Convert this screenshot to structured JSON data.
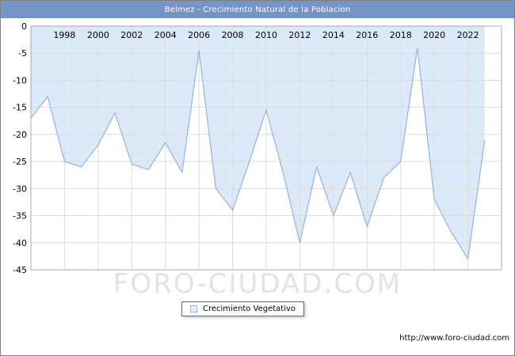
{
  "title": "Belmez - Crecimiento Natural de la Poblacion",
  "watermark": "FORO-CIUDAD.COM",
  "footer_url": "http://www.foro-ciudad.com",
  "legend": {
    "label": "Crecimiento Vegetativo"
  },
  "colors": {
    "titlebar": "#7494ca",
    "area_fill": "#dce9f8",
    "line": "#94b3dd",
    "grid": "#dcdcdc",
    "plot_border": "#a8a8a8",
    "watermark": "#e3e3e3"
  },
  "chart_data": {
    "type": "area",
    "title": "Belmez - Crecimiento Natural de la Poblacion",
    "xlabel": "",
    "ylabel": "",
    "xlim": [
      1996,
      2024
    ],
    "ylim": [
      -45,
      0
    ],
    "baseline": 0,
    "grid": true,
    "legend_position": "bottom",
    "x_ticks": [
      1998,
      2000,
      2002,
      2004,
      2006,
      2008,
      2010,
      2012,
      2014,
      2016,
      2018,
      2020,
      2022
    ],
    "y_ticks": [
      0,
      -5,
      -10,
      -15,
      -20,
      -25,
      -30,
      -35,
      -40,
      -45
    ],
    "series": [
      {
        "name": "Crecimiento Vegetativo",
        "x": [
          1996,
          1997,
          1998,
          1999,
          2000,
          2001,
          2002,
          2003,
          2004,
          2005,
          2006,
          2007,
          2008,
          2009,
          2010,
          2011,
          2012,
          2013,
          2014,
          2015,
          2016,
          2017,
          2018,
          2019,
          2020,
          2021,
          2022,
          2023
        ],
        "values": [
          -17,
          -13,
          -25,
          -26,
          -22,
          -16,
          -25.5,
          -26.5,
          -21.5,
          -27,
          -4.5,
          -30,
          -34,
          -25,
          -15.5,
          -27,
          -40,
          -26,
          -35,
          -27,
          -37,
          -28,
          -25,
          -4,
          -32,
          -38,
          -43,
          -21
        ]
      }
    ]
  }
}
